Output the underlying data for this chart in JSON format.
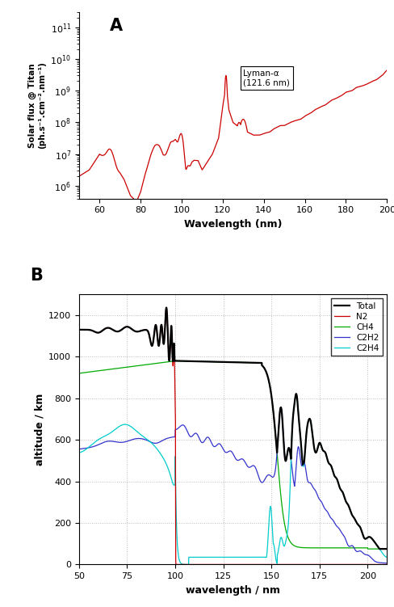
{
  "panel_A": {
    "title": "A",
    "xlabel": "Wavelength (nm)",
    "ylabel": "Solar flux @ Titan (ph.s⁻¹.cm⁻².nm⁻¹)",
    "xlim": [
      50,
      200
    ],
    "ylim_log": [
      400000.0,
      300000000000.0
    ],
    "line_color": "#cc0000",
    "annotation_text": "Lyman-α\n(121.6 nm)"
  },
  "panel_B": {
    "title": "B",
    "xlabel": "wavelength / nm",
    "ylabel": "altitude / km",
    "xlim": [
      50,
      210
    ],
    "ylim": [
      0,
      1300
    ],
    "grid_color": "#bbbbbb",
    "colors": {
      "Total": "#000000",
      "N2": "#cc0000",
      "CH4": "#00aa00",
      "C2H2": "#3333cc",
      "C2H4": "#00cccc"
    }
  },
  "bg_color": "#ffffff"
}
